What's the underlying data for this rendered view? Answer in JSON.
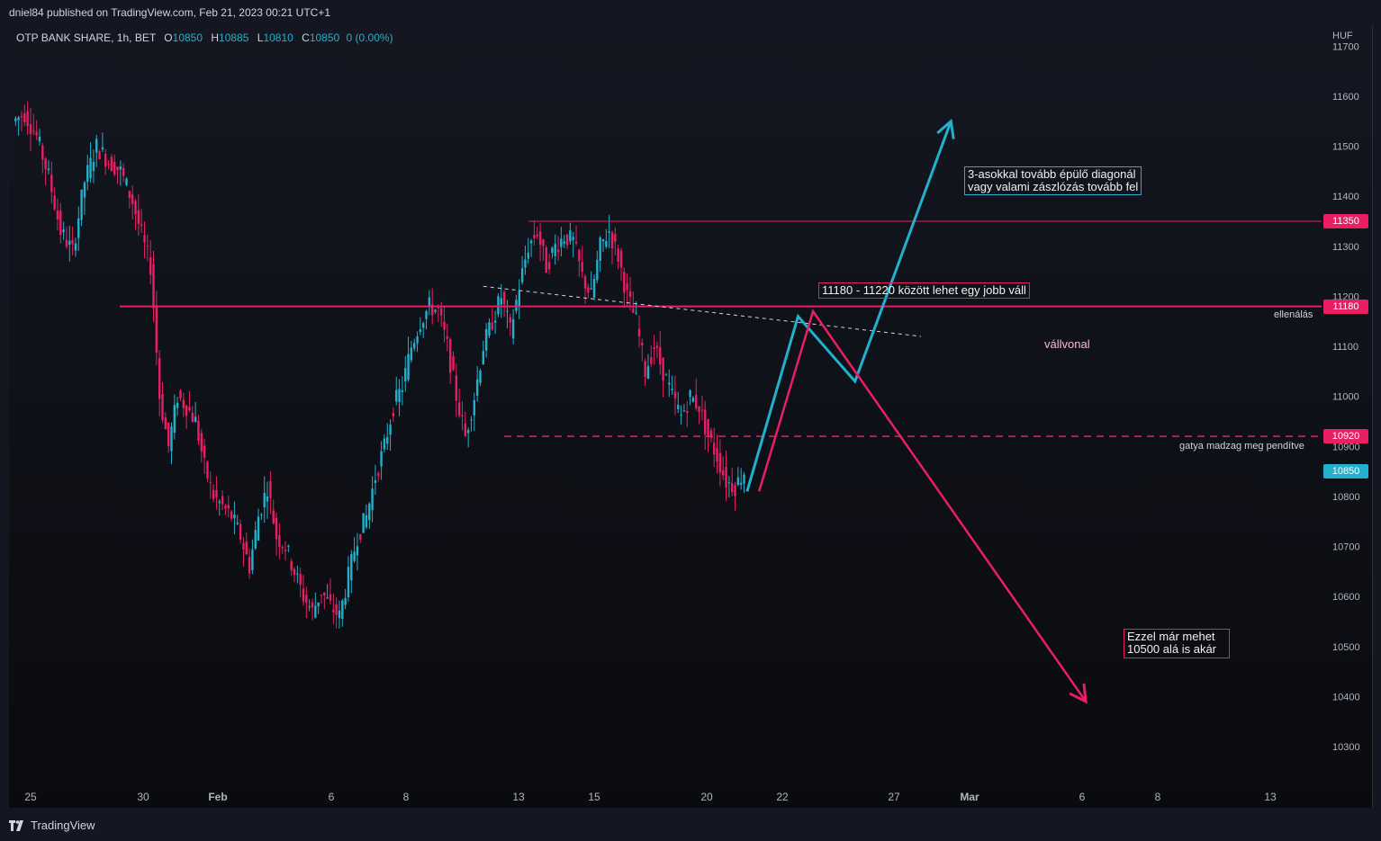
{
  "header": {
    "published": "dniel84 published on TradingView.com, Feb 21, 2023 00:21 UTC+1"
  },
  "footer": {
    "brand": "TradingView"
  },
  "legend": {
    "symbol": "OTP BANK SHARE, 1h, BET",
    "o_label": "O",
    "o": "10850",
    "h_label": "H",
    "h": "10885",
    "l_label": "L",
    "l": "10810",
    "c_label": "C",
    "c": "10850",
    "change": "0 (0.00%)"
  },
  "colors": {
    "up": "#22b1cc",
    "down": "#e91e63",
    "resistance": "#e91e63",
    "projection_up": "#22b1cc",
    "projection_down": "#e91e63",
    "neckline": "#d1d4dc"
  },
  "chart_data": {
    "type": "candlestick",
    "unit": "HUF",
    "x_ticks": [
      "25",
      "30",
      "Feb",
      "6",
      "8",
      "13",
      "15",
      "20",
      "22",
      "27",
      "Mar",
      "6",
      "8",
      "13"
    ],
    "y_ticks": [
      10300,
      10400,
      10500,
      10600,
      10700,
      10800,
      10900,
      11000,
      11100,
      11200,
      11300,
      11400,
      11500,
      11600,
      11700
    ],
    "price_tags": [
      {
        "value": "11350",
        "color": "#e91e63"
      },
      {
        "value": "11180",
        "color": "#e91e63"
      },
      {
        "value": "10920",
        "color": "#e91e63"
      },
      {
        "value": "10850",
        "color": "#22b1cc"
      }
    ],
    "levels": [
      {
        "price": 11350,
        "style": "solid-thin"
      },
      {
        "price": 11180,
        "style": "solid",
        "label": "ellenálás"
      },
      {
        "price": 10920,
        "style": "dashed",
        "label": "gatya madzag meg pendítve"
      }
    ],
    "neckline_label": "vállvonal",
    "annotations": [
      {
        "text": "11180 - 11220 között lehet egy jobb váll"
      },
      {
        "lines": [
          "3-asokkal tovább épülő diagonál",
          "vagy valami zászlózás tovább fel"
        ]
      },
      {
        "lines": [
          "Ezzel már mehet",
          "10500 alá is akár"
        ]
      }
    ],
    "close_path": [
      [
        0,
        11550
      ],
      [
        4,
        11565
      ],
      [
        8,
        11520
      ],
      [
        12,
        11440
      ],
      [
        16,
        11330
      ],
      [
        20,
        11290
      ],
      [
        24,
        11430
      ],
      [
        28,
        11500
      ],
      [
        32,
        11470
      ],
      [
        36,
        11450
      ],
      [
        40,
        11390
      ],
      [
        44,
        11300
      ],
      [
        46,
        11260
      ],
      [
        47,
        11180
      ],
      [
        49,
        11000
      ],
      [
        52,
        10900
      ],
      [
        55,
        11000
      ],
      [
        58,
        10980
      ],
      [
        61,
        10950
      ],
      [
        64,
        10860
      ],
      [
        67,
        10800
      ],
      [
        70,
        10780
      ],
      [
        73,
        10760
      ],
      [
        76,
        10720
      ],
      [
        79,
        10660
      ],
      [
        82,
        10760
      ],
      [
        85,
        10820
      ],
      [
        88,
        10720
      ],
      [
        91,
        10700
      ],
      [
        94,
        10650
      ],
      [
        97,
        10600
      ],
      [
        100,
        10570
      ],
      [
        103,
        10610
      ],
      [
        106,
        10580
      ],
      [
        109,
        10560
      ],
      [
        112,
        10640
      ],
      [
        115,
        10720
      ],
      [
        118,
        10760
      ],
      [
        121,
        10840
      ],
      [
        124,
        10900
      ],
      [
        127,
        10980
      ],
      [
        130,
        11020
      ],
      [
        133,
        11100
      ],
      [
        136,
        11150
      ],
      [
        139,
        11180
      ],
      [
        142,
        11170
      ],
      [
        145,
        11100
      ],
      [
        148,
        11000
      ],
      [
        151,
        10920
      ],
      [
        154,
        11000
      ],
      [
        157,
        11100
      ],
      [
        160,
        11150
      ],
      [
        163,
        11200
      ],
      [
        166,
        11130
      ],
      [
        169,
        11220
      ],
      [
        172,
        11300
      ],
      [
        175,
        11330
      ],
      [
        178,
        11260
      ],
      [
        181,
        11300
      ],
      [
        184,
        11320
      ],
      [
        187,
        11310
      ],
      [
        190,
        11240
      ],
      [
        193,
        11200
      ],
      [
        196,
        11300
      ],
      [
        199,
        11330
      ],
      [
        202,
        11280
      ],
      [
        205,
        11200
      ],
      [
        208,
        11150
      ],
      [
        211,
        11050
      ],
      [
        214,
        11100
      ],
      [
        217,
        11050
      ],
      [
        220,
        11000
      ],
      [
        223,
        10960
      ],
      [
        226,
        11000
      ],
      [
        229,
        10980
      ],
      [
        232,
        10920
      ],
      [
        235,
        10880
      ],
      [
        238,
        10830
      ],
      [
        241,
        10820
      ],
      [
        244,
        10850
      ]
    ],
    "neckline": [
      [
        157,
        11220
      ],
      [
        303,
        11120
      ]
    ],
    "projection_blue": [
      [
        245,
        10810
      ],
      [
        262,
        11160
      ],
      [
        281,
        11030
      ],
      [
        313,
        11550
      ]
    ],
    "projection_pink": [
      [
        249,
        10810
      ],
      [
        267,
        11170
      ],
      [
        358,
        10390
      ]
    ]
  }
}
